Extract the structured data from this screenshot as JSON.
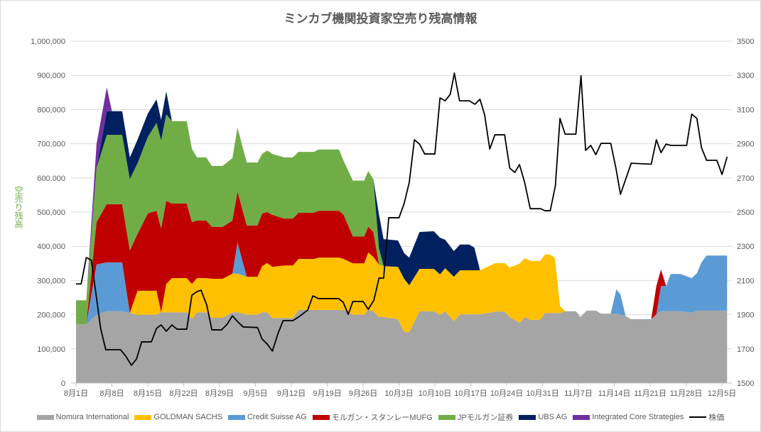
{
  "chart_data": {
    "type": "area",
    "stacked": true,
    "title": "ミンカブ機関投資家空売り残高情報",
    "ylabel": "空売り残高",
    "ylim": [
      0,
      1000000
    ],
    "y2lim": [
      1500,
      3500
    ],
    "grid": true,
    "legend_position": "bottom",
    "x_unit": "days since 8月1日",
    "xlim": [
      0,
      127
    ],
    "x_tick_days": [
      0,
      7,
      14,
      21,
      28,
      35,
      42,
      49,
      56,
      63,
      70,
      77,
      84,
      91,
      98,
      105,
      112,
      119,
      126
    ],
    "x_tick_labels": [
      "8月1日",
      "8月8日",
      "8月15日",
      "8月22日",
      "8月29日",
      "9月5日",
      "9月12日",
      "9月19日",
      "9月26日",
      "10月3日",
      "10月10日",
      "10月17日",
      "10月24日",
      "10月31日",
      "11月7日",
      "11月14日",
      "11月21日",
      "11月28日",
      "12月5日"
    ],
    "y_tick_labels": [
      "0",
      "100,000",
      "200,000",
      "300,000",
      "400,000",
      "500,000",
      "600,000",
      "700,000",
      "800,000",
      "900,000",
      "1,000,000"
    ],
    "y2_tick_labels": [
      "1500",
      "1700",
      "1900",
      "2100",
      "2300",
      "2500",
      "2700",
      "2900",
      "3100",
      "3300",
      "3500"
    ],
    "series": [
      {
        "name": "Nomura International",
        "color": "#A5A5A5"
      },
      {
        "name": "GOLDMAN SACHS",
        "color": "#FFC000"
      },
      {
        "name": "Credit Suisse AG",
        "color": "#5B9BD5"
      },
      {
        "name": "モルガン・スタンレーMUFG",
        "color": "#C00000"
      },
      {
        "name": "JPモルガン証券",
        "color": "#70AD47"
      },
      {
        "name": "UBS AG",
        "color": "#002060"
      },
      {
        "name": "Integrated Core Strategies",
        "color": "#7030A0"
      }
    ],
    "area_rows_columns": [
      "day",
      "Nomura International",
      "GOLDMAN SACHS",
      "Credit Suisse AG",
      "モルガン・スタンレーMUFG",
      "JPモルガン証券",
      "UBS AG",
      "Integrated Core Strategies"
    ],
    "area_rows": [
      [
        0,
        172000,
        0,
        0,
        0,
        70000,
        0,
        0
      ],
      [
        2,
        172000,
        0,
        0,
        0,
        70000,
        0,
        0
      ],
      [
        4,
        200000,
        0,
        147000,
        124000,
        158000,
        0,
        70000
      ],
      [
        6,
        210000,
        0,
        143000,
        170000,
        203000,
        69000,
        70000
      ],
      [
        7,
        210000,
        0,
        143000,
        170000,
        203000,
        69000,
        0
      ],
      [
        9,
        210000,
        0,
        143000,
        170000,
        203000,
        69000,
        0
      ],
      [
        10.5,
        205000,
        0,
        0,
        183000,
        208000,
        64000,
        0
      ],
      [
        12,
        200000,
        70000,
        0,
        166000,
        207000,
        69000,
        0
      ],
      [
        14,
        200000,
        70000,
        0,
        226000,
        224000,
        68000,
        0
      ],
      [
        15.7,
        200000,
        70000,
        0,
        234000,
        257000,
        69000,
        0
      ],
      [
        16.6,
        207000,
        0,
        0,
        245000,
        258000,
        60000,
        0
      ],
      [
        17.6,
        207000,
        83000,
        0,
        243000,
        253000,
        67000,
        0
      ],
      [
        18.7,
        207000,
        100000,
        0,
        218000,
        241000,
        0,
        0
      ],
      [
        21.6,
        207000,
        100000,
        0,
        218000,
        241000,
        0,
        0
      ],
      [
        22.6,
        187000,
        103000,
        0,
        181000,
        214000,
        0,
        0
      ],
      [
        23.6,
        207000,
        100000,
        0,
        168000,
        185000,
        0,
        0
      ],
      [
        25.4,
        207000,
        100000,
        0,
        168000,
        185000,
        0,
        0
      ],
      [
        26.5,
        191000,
        114000,
        0,
        152000,
        178000,
        0,
        0
      ],
      [
        28.6,
        191000,
        114000,
        0,
        152000,
        178000,
        0,
        0
      ],
      [
        30.5,
        207000,
        113000,
        0,
        155000,
        183000,
        0,
        0
      ],
      [
        31.5,
        207000,
        113000,
        91000,
        149000,
        187000,
        0,
        0
      ],
      [
        33.3,
        200000,
        111000,
        0,
        150000,
        184000,
        0,
        0
      ],
      [
        35.4,
        200000,
        111000,
        0,
        150000,
        184000,
        0,
        0
      ],
      [
        36.3,
        207000,
        135000,
        0,
        154000,
        174000,
        0,
        0
      ],
      [
        37.3,
        207000,
        144000,
        0,
        149000,
        180000,
        0,
        0
      ],
      [
        38.3,
        190000,
        150000,
        0,
        152000,
        178000,
        0,
        0
      ],
      [
        40.6,
        190000,
        154000,
        0,
        137000,
        179000,
        0,
        0
      ],
      [
        42.3,
        190000,
        154000,
        0,
        137000,
        179000,
        0,
        0
      ],
      [
        43.4,
        214000,
        149000,
        0,
        135000,
        178000,
        0,
        0
      ],
      [
        46.4,
        214000,
        149000,
        0,
        135000,
        178000,
        0,
        0
      ],
      [
        47.3,
        214000,
        153000,
        0,
        137000,
        179000,
        0,
        0
      ],
      [
        51.3,
        214000,
        153000,
        0,
        137000,
        179000,
        0,
        0
      ],
      [
        52.2,
        214000,
        149000,
        0,
        129000,
        158000,
        0,
        0
      ],
      [
        54,
        200000,
        150000,
        0,
        79000,
        163000,
        0,
        0
      ],
      [
        56.2,
        200000,
        150000,
        0,
        79000,
        163000,
        0,
        0
      ],
      [
        57,
        214000,
        168000,
        0,
        75000,
        163000,
        0,
        0
      ],
      [
        58,
        210000,
        159000,
        0,
        73000,
        154000,
        0,
        0
      ],
      [
        59.1,
        193000,
        153000,
        0,
        0,
        48000,
        98000,
        0
      ],
      [
        60,
        193000,
        149000,
        0,
        0,
        0,
        79000,
        0
      ],
      [
        62.8,
        187000,
        153000,
        0,
        0,
        0,
        77000,
        0
      ],
      [
        64,
        149000,
        156000,
        0,
        0,
        0,
        75000,
        0
      ],
      [
        65,
        149000,
        137000,
        0,
        0,
        0,
        81000,
        0
      ],
      [
        67,
        210000,
        124000,
        0,
        0,
        0,
        108000,
        0
      ],
      [
        69.8,
        210000,
        124000,
        0,
        0,
        0,
        110000,
        0
      ],
      [
        71,
        199000,
        119000,
        0,
        0,
        0,
        107000,
        0
      ],
      [
        72,
        210000,
        126000,
        0,
        0,
        0,
        83000,
        0
      ],
      [
        73.7,
        181000,
        130000,
        0,
        0,
        0,
        75000,
        0
      ],
      [
        74.9,
        201000,
        129000,
        0,
        0,
        0,
        75000,
        0
      ],
      [
        76.7,
        201000,
        129000,
        0,
        0,
        0,
        75000,
        0
      ],
      [
        77.7,
        201000,
        129000,
        0,
        0,
        0,
        66000,
        0
      ],
      [
        78.8,
        201000,
        129000,
        0,
        0,
        0,
        0,
        0
      ],
      [
        81.8,
        209000,
        142000,
        0,
        0,
        0,
        0,
        0
      ],
      [
        83.6,
        209000,
        142000,
        0,
        0,
        0,
        0,
        0
      ],
      [
        84.6,
        193000,
        145000,
        0,
        0,
        0,
        0,
        0
      ],
      [
        86.5,
        176000,
        173000,
        0,
        0,
        0,
        0,
        0
      ],
      [
        87.5,
        193000,
        172000,
        0,
        0,
        0,
        0,
        0
      ],
      [
        88.7,
        185000,
        172000,
        0,
        0,
        0,
        0,
        0
      ],
      [
        90.5,
        185000,
        172000,
        0,
        0,
        0,
        0,
        0
      ],
      [
        91.5,
        205000,
        171000,
        0,
        0,
        0,
        0,
        0
      ],
      [
        92.4,
        205000,
        171000,
        0,
        0,
        0,
        0,
        0
      ],
      [
        93.4,
        205000,
        162000,
        0,
        0,
        0,
        0,
        0
      ],
      [
        94.4,
        205000,
        21000,
        0,
        0,
        0,
        0,
        0
      ],
      [
        95.4,
        210000,
        0,
        0,
        0,
        0,
        0,
        0
      ],
      [
        97.5,
        210000,
        0,
        0,
        0,
        0,
        0,
        0
      ],
      [
        98.4,
        193000,
        0,
        0,
        0,
        0,
        0,
        0
      ],
      [
        99.6,
        212000,
        0,
        0,
        0,
        0,
        0,
        0
      ],
      [
        101.4,
        212000,
        0,
        0,
        0,
        0,
        0,
        0
      ],
      [
        102.4,
        203000,
        0,
        0,
        0,
        0,
        0,
        0
      ],
      [
        104.3,
        203000,
        0,
        0,
        0,
        0,
        0,
        0
      ],
      [
        105.4,
        203000,
        0,
        71000,
        0,
        0,
        0,
        0
      ],
      [
        106.2,
        200000,
        0,
        59000,
        0,
        0,
        0,
        0
      ],
      [
        107.2,
        196000,
        0,
        0,
        0,
        0,
        0,
        0
      ],
      [
        108.2,
        187000,
        0,
        0,
        0,
        0,
        0,
        0
      ],
      [
        112.2,
        187000,
        0,
        0,
        0,
        0,
        0,
        0
      ],
      [
        113.2,
        201000,
        0,
        0,
        83000,
        0,
        0,
        0
      ],
      [
        114.1,
        210000,
        0,
        74000,
        48000,
        0,
        0,
        0
      ],
      [
        115.1,
        210000,
        0,
        74000,
        0,
        0,
        0,
        0
      ],
      [
        116,
        210000,
        0,
        109000,
        0,
        0,
        0,
        0
      ],
      [
        117.9,
        210000,
        0,
        109000,
        0,
        0,
        0,
        0
      ],
      [
        120.1,
        206000,
        0,
        101000,
        0,
        0,
        0,
        0
      ],
      [
        121.1,
        212000,
        0,
        109000,
        0,
        0,
        0,
        0
      ],
      [
        122,
        212000,
        0,
        141000,
        0,
        0,
        0,
        0
      ],
      [
        123,
        212000,
        0,
        161000,
        0,
        0,
        0,
        0
      ],
      [
        127,
        212000,
        0,
        161000,
        0,
        0,
        0,
        0
      ]
    ],
    "line_series": {
      "name": "株価",
      "axis": "right",
      "color": "#000000",
      "points": [
        [
          0,
          2080
        ],
        [
          1,
          2080
        ],
        [
          2,
          2234
        ],
        [
          3,
          2218
        ],
        [
          4.8,
          1820
        ],
        [
          5.8,
          1695
        ],
        [
          8.7,
          1695
        ],
        [
          9.7,
          1658
        ],
        [
          10.8,
          1604
        ],
        [
          11.8,
          1641
        ],
        [
          12.8,
          1741
        ],
        [
          14.7,
          1741
        ],
        [
          15.7,
          1820
        ],
        [
          16.6,
          1840
        ],
        [
          17.6,
          1803
        ],
        [
          18.7,
          1840
        ],
        [
          19.7,
          1815
        ],
        [
          21.6,
          1815
        ],
        [
          22.6,
          2014
        ],
        [
          23.6,
          2035
        ],
        [
          24.4,
          2043
        ],
        [
          25.5,
          1956
        ],
        [
          26.5,
          1811
        ],
        [
          28.4,
          1811
        ],
        [
          29.5,
          1845
        ],
        [
          30.5,
          1893
        ],
        [
          31.5,
          1860
        ],
        [
          32.6,
          1828
        ],
        [
          35.4,
          1825
        ],
        [
          36.3,
          1757
        ],
        [
          37.3,
          1728
        ],
        [
          38.3,
          1687
        ],
        [
          39.4,
          1790
        ],
        [
          40.4,
          1865
        ],
        [
          42.3,
          1865
        ],
        [
          43.4,
          1886
        ],
        [
          45.2,
          1927
        ],
        [
          46.2,
          2010
        ],
        [
          47.3,
          1994
        ],
        [
          51.2,
          1994
        ],
        [
          52.1,
          1973
        ],
        [
          53.1,
          1902
        ],
        [
          54,
          1977
        ],
        [
          56,
          1977
        ],
        [
          57,
          1931
        ],
        [
          58.1,
          1985
        ],
        [
          59.1,
          2114
        ],
        [
          60,
          2114
        ],
        [
          61,
          2467
        ],
        [
          63,
          2467
        ],
        [
          64,
          2550
        ],
        [
          65,
          2674
        ],
        [
          66,
          2923
        ],
        [
          67,
          2898
        ],
        [
          68,
          2840
        ],
        [
          70,
          2840
        ],
        [
          71,
          3168
        ],
        [
          72,
          3151
        ],
        [
          73,
          3189
        ],
        [
          73.8,
          3313
        ],
        [
          74.8,
          3151
        ],
        [
          76.7,
          3151
        ],
        [
          77.8,
          3131
        ],
        [
          78.8,
          3160
        ],
        [
          79.7,
          3069
        ],
        [
          80.7,
          2869
        ],
        [
          81.7,
          2952
        ],
        [
          83.6,
          2952
        ],
        [
          84.6,
          2757
        ],
        [
          85.6,
          2732
        ],
        [
          86.5,
          2778
        ],
        [
          87.5,
          2674
        ],
        [
          88.6,
          2520
        ],
        [
          90.6,
          2520
        ],
        [
          91.5,
          2508
        ],
        [
          92.5,
          2508
        ],
        [
          93.5,
          2653
        ],
        [
          94.4,
          3048
        ],
        [
          95.4,
          2956
        ],
        [
          97.5,
          2956
        ],
        [
          98.5,
          3297
        ],
        [
          99.4,
          2861
        ],
        [
          100.4,
          2890
        ],
        [
          101.4,
          2836
        ],
        [
          102.4,
          2902
        ],
        [
          104.3,
          2902
        ],
        [
          105.3,
          2759
        ],
        [
          106.2,
          2604
        ],
        [
          107.2,
          2691
        ],
        [
          108.3,
          2786
        ],
        [
          112.2,
          2780
        ],
        [
          113.2,
          2923
        ],
        [
          114.1,
          2848
        ],
        [
          115.1,
          2898
        ],
        [
          116,
          2890
        ],
        [
          119.1,
          2890
        ],
        [
          120.1,
          3073
        ],
        [
          121.1,
          3048
        ],
        [
          122,
          2877
        ],
        [
          123,
          2803
        ],
        [
          125,
          2803
        ],
        [
          126,
          2720
        ],
        [
          127,
          2823
        ]
      ]
    }
  }
}
